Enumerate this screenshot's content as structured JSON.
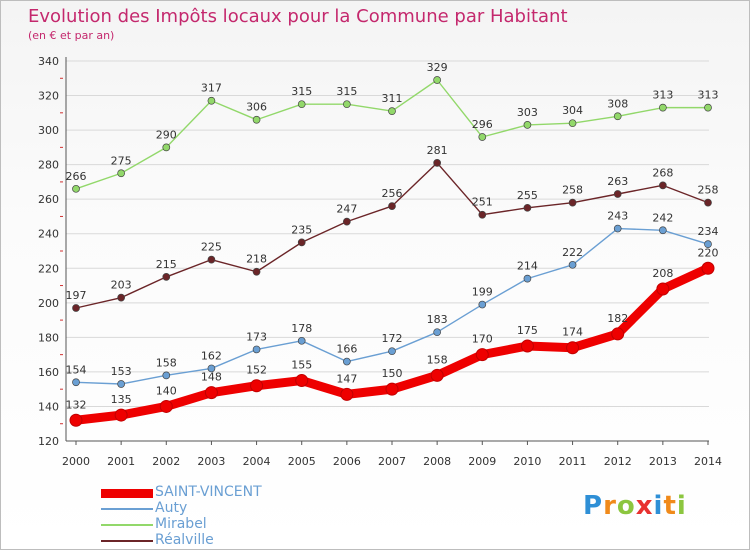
{
  "header": {
    "title": "Evolution des Impôts locaux pour la Commune par Habitant",
    "subtitle": "(en € et par an)"
  },
  "logo": {
    "letters": [
      "P",
      "r",
      "o",
      "x",
      "i",
      "t",
      "i"
    ]
  },
  "colors": {
    "title": "#c4286d",
    "saint_vincent": "#ee0000",
    "auty": "#6a9fd3",
    "mirabel": "#92d86a",
    "realville": "#6b2528",
    "grid": "#d9d9d9",
    "axis": "#555555"
  },
  "chart_data": {
    "type": "line",
    "title": "Evolution des Impôts locaux pour la Commune par Habitant",
    "subtitle": "(en € et par an)",
    "x": [
      "2000",
      "2001",
      "2002",
      "2003",
      "2004",
      "2005",
      "2006",
      "2007",
      "2008",
      "2009",
      "2010",
      "2011",
      "2012",
      "2013",
      "2014"
    ],
    "ylim": [
      120,
      340
    ],
    "yticks": [
      120,
      140,
      160,
      180,
      200,
      220,
      240,
      260,
      280,
      300,
      320,
      340
    ],
    "grid": "horizontal",
    "legend_position": "bottom-left",
    "series": [
      {
        "name": "SAINT-VINCENT",
        "color": "#ee0000",
        "values": [
          132,
          135,
          140,
          148,
          152,
          155,
          147,
          150,
          158,
          170,
          175,
          174,
          182,
          208,
          220
        ]
      },
      {
        "name": "Auty",
        "color": "#6a9fd3",
        "values": [
          154,
          153,
          158,
          162,
          173,
          178,
          166,
          172,
          183,
          199,
          214,
          222,
          243,
          242,
          234
        ]
      },
      {
        "name": "Mirabel",
        "color": "#92d86a",
        "values": [
          266,
          275,
          290,
          317,
          306,
          315,
          315,
          311,
          329,
          296,
          303,
          304,
          308,
          313,
          313
        ]
      },
      {
        "name": "Réalville",
        "color": "#6b2528",
        "values": [
          197,
          203,
          215,
          225,
          218,
          235,
          247,
          256,
          281,
          251,
          255,
          258,
          263,
          268,
          258
        ]
      }
    ]
  }
}
